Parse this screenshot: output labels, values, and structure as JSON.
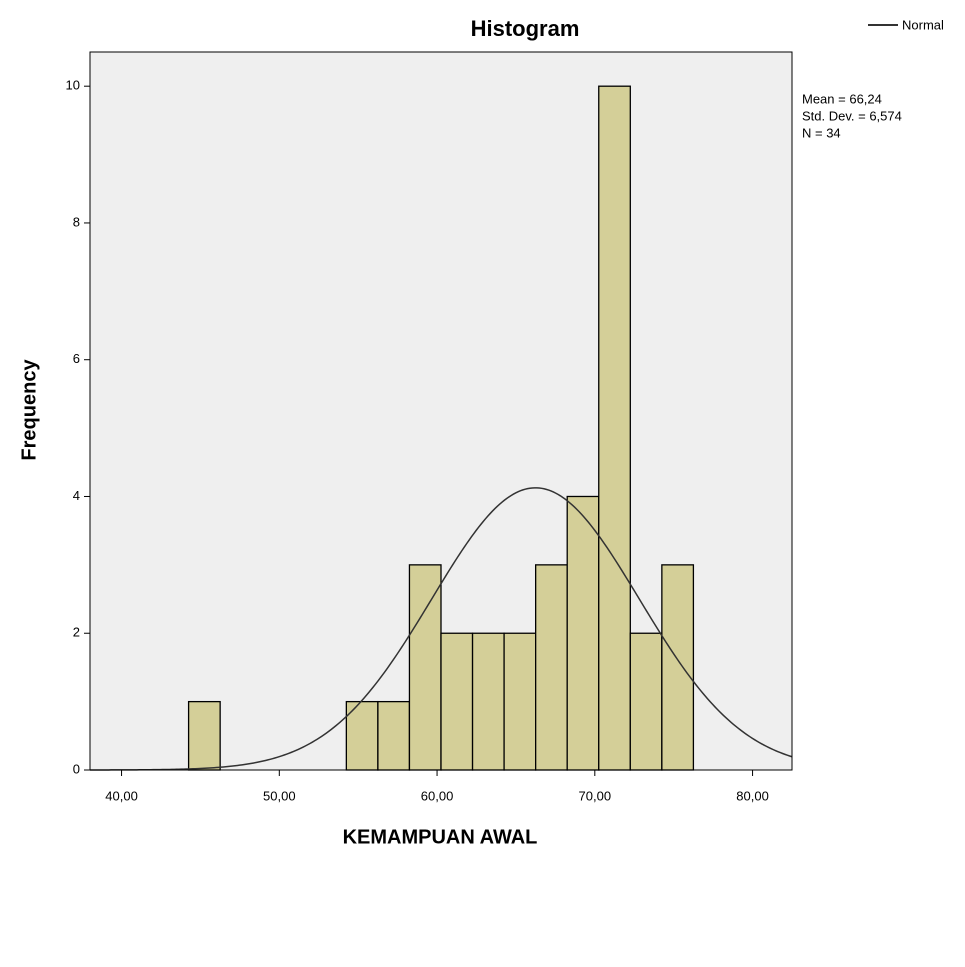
{
  "chart_data": {
    "type": "histogram",
    "title": "Histogram",
    "x_label": "KEMAMPUAN AWAL",
    "y_label": "Frequency",
    "bins": [
      44.25,
      46.25,
      48.25,
      50.25,
      52.25,
      54.25,
      56.25,
      58.25,
      60.25,
      62.25,
      64.25,
      66.25,
      68.25,
      70.25,
      72.25,
      74.25,
      76.25
    ],
    "values": [
      1,
      0,
      0,
      0,
      0,
      1,
      1,
      3,
      2,
      2,
      2,
      3,
      4,
      10,
      2,
      3
    ],
    "color": "#d4cf98",
    "xlim": [
      38,
      82.5
    ],
    "ylim": [
      0,
      10.5
    ],
    "xticks": [
      {
        "value": 40,
        "label": "40,00"
      },
      {
        "value": 50,
        "label": "50,00"
      },
      {
        "value": 60,
        "label": "60,00"
      },
      {
        "value": 70,
        "label": "70,00"
      },
      {
        "value": 80,
        "label": "80,00"
      }
    ],
    "yticks": [
      0,
      2,
      4,
      6,
      8,
      10
    ],
    "stats": [
      {
        "value": 66.24,
        "label": "Mean = 66,24"
      },
      {
        "value": 6.574,
        "label": "Std. Dev. = 6,574"
      },
      {
        "value": 34,
        "label": "N = 34"
      }
    ],
    "curve": {
      "name": "Normal",
      "color": "#333333"
    }
  }
}
